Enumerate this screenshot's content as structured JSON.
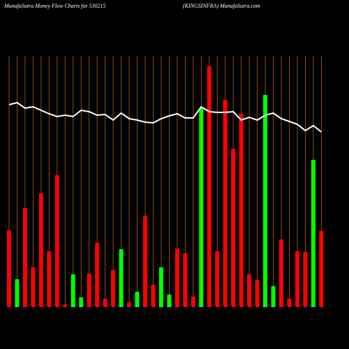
{
  "chart_data": {
    "type": "bar",
    "title": "MunafaSutra  Money Flow  Charts for 530215",
    "subtitle": "(KINGSINFRA) MunafaSutra.com",
    "categories": [
      null,
      null,
      null,
      null,
      null,
      null,
      null,
      null,
      null,
      null,
      null,
      null,
      null,
      null,
      null,
      null,
      null,
      null,
      null,
      null,
      null,
      null,
      null,
      null,
      null,
      null,
      null,
      null,
      null,
      null,
      null,
      null,
      null,
      null,
      null,
      null,
      null,
      null,
      null,
      null
    ],
    "values": [
      110,
      40,
      142,
      57,
      163,
      80,
      189,
      4,
      47,
      14,
      48,
      92,
      12,
      53,
      83,
      7,
      22,
      131,
      32,
      57,
      18,
      84,
      77,
      15,
      285,
      345,
      80,
      297,
      227,
      277,
      47,
      39,
      304,
      30,
      97,
      12,
      80,
      79,
      211,
      109
    ],
    "colors": [
      "#ff0000",
      "#00ff00",
      "#ff0000",
      "#ff0000",
      "#ff0000",
      "#ff0000",
      "#ff0000",
      "#ff0000",
      "#00ff00",
      "#00ff00",
      "#ff0000",
      "#ff0000",
      "#ff0000",
      "#ff0000",
      "#00ff00",
      "#ff0000",
      "#00ff00",
      "#ff0000",
      "#ff0000",
      "#00ff00",
      "#00ff00",
      "#ff0000",
      "#ff0000",
      "#ff0000",
      "#00ff00",
      "#ff0000",
      "#ff0000",
      "#ff0000",
      "#ff0000",
      "#ff0000",
      "#ff0000",
      "#ff0000",
      "#00ff00",
      "#00ff00",
      "#ff0000",
      "#ff0000",
      "#ff0000",
      "#ff0000",
      "#00ff00",
      "#ff0000"
    ],
    "line": {
      "color": "#ffffff",
      "values": [
        290,
        293,
        285,
        287,
        282,
        277,
        273,
        275,
        273,
        282,
        280,
        275,
        276,
        268,
        278,
        270,
        268,
        265,
        264,
        270,
        274,
        277,
        271,
        271,
        287,
        280,
        279,
        279,
        280,
        268,
        272,
        268,
        275,
        278,
        270,
        266,
        262,
        253,
        260,
        251
      ]
    },
    "grid_color": "#b8621b",
    "ylim": [
      0,
      360
    ]
  }
}
